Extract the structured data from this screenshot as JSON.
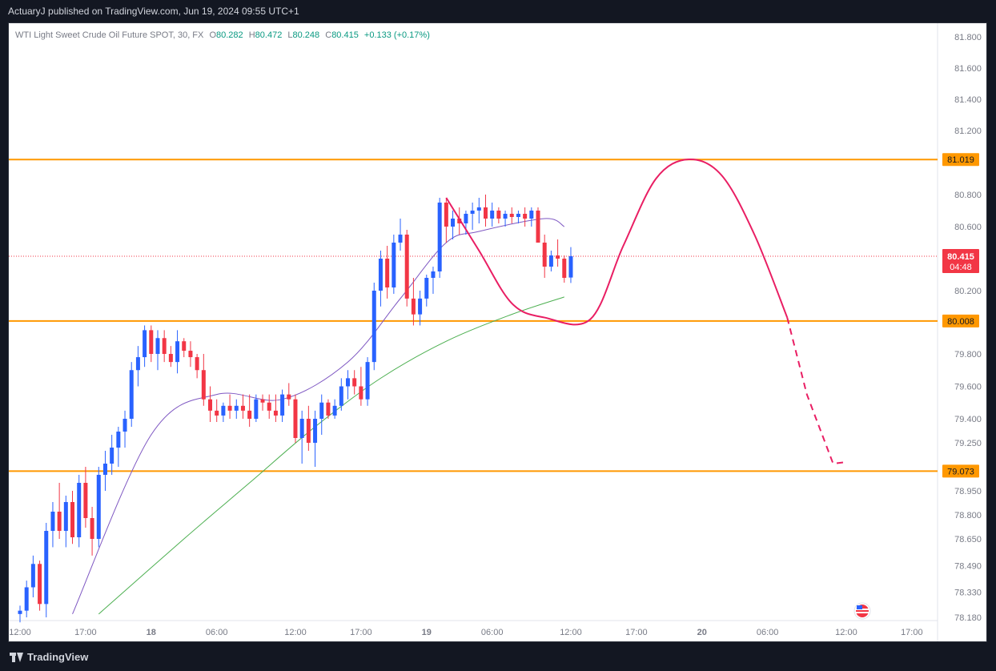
{
  "header": {
    "published": "ActuaryJ published on TradingView.com, Jun 19, 2024 09:55 UTC+1"
  },
  "legend": {
    "symbol": "WTI Light Sweet Crude Oil Future SPOT, 30, FX",
    "open_label": "O",
    "open": "80.282",
    "high_label": "H",
    "high": "80.472",
    "low_label": "L",
    "low": "80.248",
    "close_label": "C",
    "close": "80.415",
    "change": "+0.133 (+0.17%)"
  },
  "footer": {
    "brand": "TradingView"
  },
  "colors": {
    "up": "#2962ff",
    "down": "#f23645",
    "level": "#ff9800",
    "projection": "#e91e63",
    "ma_fast": "#7e57c2",
    "ma_slow": "#4caf50",
    "text": "#787b86"
  },
  "chart_data": {
    "type": "candlestick",
    "y_ticks": [
      "81.800",
      "81.600",
      "81.400",
      "81.200",
      "80.800",
      "80.600",
      "80.200",
      "79.800",
      "79.600",
      "79.400",
      "79.250",
      "78.950",
      "78.800",
      "78.650",
      "78.490",
      "78.330",
      "78.180"
    ],
    "x_ticks": [
      {
        "label": "12:00",
        "i": 0
      },
      {
        "label": "17:00",
        "i": 10
      },
      {
        "label": "18",
        "i": 20
      },
      {
        "label": "06:00",
        "i": 30
      },
      {
        "label": "12:00",
        "i": 42
      },
      {
        "label": "17:00",
        "i": 52
      },
      {
        "label": "19",
        "i": 62
      },
      {
        "label": "06:00",
        "i": 72
      },
      {
        "label": "12:00",
        "i": 84
      },
      {
        "label": "17:00",
        "i": 94
      },
      {
        "label": "20",
        "i": 104
      },
      {
        "label": "06:00",
        "i": 114
      },
      {
        "label": "12:00",
        "i": 126
      },
      {
        "label": "17:00",
        "i": 136
      }
    ],
    "levels": [
      {
        "value": 81.019,
        "label": "81.019"
      },
      {
        "value": 80.008,
        "label": "80.008"
      },
      {
        "value": 79.073,
        "label": "79.073"
      }
    ],
    "last_price": {
      "value": 80.415,
      "label": "80.415",
      "countdown": "04:48"
    },
    "candles": [
      [
        78.2,
        78.25,
        78.15,
        78.22
      ],
      [
        78.22,
        78.4,
        78.18,
        78.36
      ],
      [
        78.36,
        78.55,
        78.3,
        78.5
      ],
      [
        78.5,
        78.52,
        78.22,
        78.26
      ],
      [
        78.26,
        78.75,
        78.18,
        78.7
      ],
      [
        78.7,
        78.88,
        78.6,
        78.82
      ],
      [
        78.82,
        79.0,
        78.65,
        78.7
      ],
      [
        78.7,
        78.92,
        78.6,
        78.88
      ],
      [
        78.88,
        78.95,
        78.62,
        78.66
      ],
      [
        78.66,
        79.05,
        78.6,
        79.0
      ],
      [
        79.0,
        79.1,
        78.72,
        78.78
      ],
      [
        78.78,
        78.85,
        78.55,
        78.65
      ],
      [
        78.65,
        79.1,
        78.6,
        79.05
      ],
      [
        79.05,
        79.2,
        78.95,
        79.12
      ],
      [
        79.12,
        79.3,
        79.05,
        79.22
      ],
      [
        79.22,
        79.35,
        79.1,
        79.32
      ],
      [
        79.32,
        79.45,
        79.22,
        79.4
      ],
      [
        79.4,
        79.75,
        79.35,
        79.7
      ],
      [
        79.7,
        79.85,
        79.6,
        79.78
      ],
      [
        79.78,
        79.98,
        79.72,
        79.95
      ],
      [
        79.95,
        79.98,
        79.75,
        79.8
      ],
      [
        79.8,
        79.95,
        79.7,
        79.9
      ],
      [
        79.9,
        79.95,
        79.75,
        79.8
      ],
      [
        79.8,
        79.85,
        79.72,
        79.75
      ],
      [
        79.75,
        79.95,
        79.68,
        79.88
      ],
      [
        79.88,
        79.9,
        79.78,
        79.82
      ],
      [
        79.82,
        79.88,
        79.72,
        79.78
      ],
      [
        79.78,
        79.8,
        79.65,
        79.7
      ],
      [
        79.7,
        79.8,
        79.48,
        79.52
      ],
      [
        79.52,
        79.6,
        79.38,
        79.45
      ],
      [
        79.45,
        79.52,
        79.38,
        79.42
      ],
      [
        79.42,
        79.5,
        79.38,
        79.48
      ],
      [
        79.48,
        79.55,
        79.4,
        79.45
      ],
      [
        79.45,
        79.52,
        79.4,
        79.48
      ],
      [
        79.48,
        79.55,
        79.4,
        79.45
      ],
      [
        79.45,
        79.55,
        79.35,
        79.4
      ],
      [
        79.4,
        79.55,
        79.38,
        79.52
      ],
      [
        79.52,
        79.55,
        79.45,
        79.5
      ],
      [
        79.5,
        79.55,
        79.4,
        79.45
      ],
      [
        79.45,
        79.55,
        79.38,
        79.42
      ],
      [
        79.42,
        79.58,
        79.38,
        79.55
      ],
      [
        79.55,
        79.62,
        79.48,
        79.52
      ],
      [
        79.52,
        79.55,
        79.25,
        79.28
      ],
      [
        79.28,
        79.45,
        79.12,
        79.4
      ],
      [
        79.4,
        79.48,
        79.2,
        79.25
      ],
      [
        79.25,
        79.45,
        79.1,
        79.4
      ],
      [
        79.4,
        79.55,
        79.3,
        79.5
      ],
      [
        79.5,
        79.52,
        79.4,
        79.42
      ],
      [
        79.42,
        79.52,
        79.4,
        79.48
      ],
      [
        79.48,
        79.65,
        79.45,
        79.6
      ],
      [
        79.6,
        79.7,
        79.52,
        79.65
      ],
      [
        79.65,
        79.7,
        79.55,
        79.6
      ],
      [
        79.6,
        79.72,
        79.48,
        79.52
      ],
      [
        79.52,
        79.78,
        79.48,
        79.75
      ],
      [
        79.75,
        80.25,
        79.7,
        80.2
      ],
      [
        80.2,
        80.45,
        80.1,
        80.4
      ],
      [
        80.4,
        80.48,
        80.15,
        80.22
      ],
      [
        80.22,
        80.55,
        80.18,
        80.5
      ],
      [
        80.5,
        80.65,
        80.45,
        80.55
      ],
      [
        80.55,
        80.58,
        80.1,
        80.15
      ],
      [
        80.15,
        80.28,
        79.98,
        80.05
      ],
      [
        80.05,
        80.2,
        79.98,
        80.15
      ],
      [
        80.15,
        80.3,
        80.1,
        80.28
      ],
      [
        80.28,
        80.35,
        80.18,
        80.32
      ],
      [
        80.32,
        80.78,
        80.28,
        80.75
      ],
      [
        80.75,
        80.78,
        80.5,
        80.6
      ],
      [
        80.6,
        80.7,
        80.52,
        80.65
      ],
      [
        80.65,
        80.72,
        80.55,
        80.62
      ],
      [
        80.62,
        80.7,
        80.55,
        80.68
      ],
      [
        80.68,
        80.75,
        80.58,
        80.7
      ],
      [
        80.7,
        80.78,
        80.62,
        80.72
      ],
      [
        80.72,
        80.8,
        80.6,
        80.65
      ],
      [
        80.65,
        80.75,
        80.6,
        80.7
      ],
      [
        80.7,
        80.72,
        80.62,
        80.65
      ],
      [
        80.65,
        80.7,
        80.6,
        80.68
      ],
      [
        80.68,
        80.72,
        80.62,
        80.66
      ],
      [
        80.66,
        80.7,
        80.62,
        80.68
      ],
      [
        80.68,
        80.72,
        80.6,
        80.65
      ],
      [
        80.65,
        80.72,
        80.6,
        80.7
      ],
      [
        80.7,
        80.72,
        80.5,
        80.5
      ],
      [
        80.5,
        80.55,
        80.28,
        80.35
      ],
      [
        80.35,
        80.45,
        80.32,
        80.42
      ],
      [
        80.42,
        80.52,
        80.35,
        80.4
      ],
      [
        80.4,
        80.42,
        80.25,
        80.28
      ],
      [
        80.282,
        80.472,
        80.248,
        80.415
      ]
    ],
    "ma_fast_x": [
      8,
      20,
      30,
      40,
      50,
      58,
      65,
      70,
      80,
      83
    ],
    "ma_fast_y": [
      78.2,
      79.3,
      79.55,
      79.52,
      79.75,
      80.15,
      80.5,
      80.57,
      80.65,
      80.6
    ],
    "ma_slow_x": [
      12,
      25,
      35,
      45,
      55,
      65,
      75,
      83
    ],
    "ma_slow_y": [
      78.2,
      78.65,
      79.0,
      79.35,
      79.65,
      79.88,
      80.05,
      80.16
    ],
    "projection": {
      "curve_x": [
        65,
        70,
        75,
        80,
        87,
        92,
        97,
        102,
        107,
        112,
        117
      ],
      "curve_y": [
        80.78,
        80.45,
        80.12,
        80.03,
        80.02,
        80.48,
        80.9,
        81.02,
        80.92,
        80.55,
        80.03
      ],
      "dashed_x": [
        117,
        120,
        124,
        126
      ],
      "dashed_y": [
        80.03,
        79.55,
        79.12,
        79.13
      ]
    }
  }
}
